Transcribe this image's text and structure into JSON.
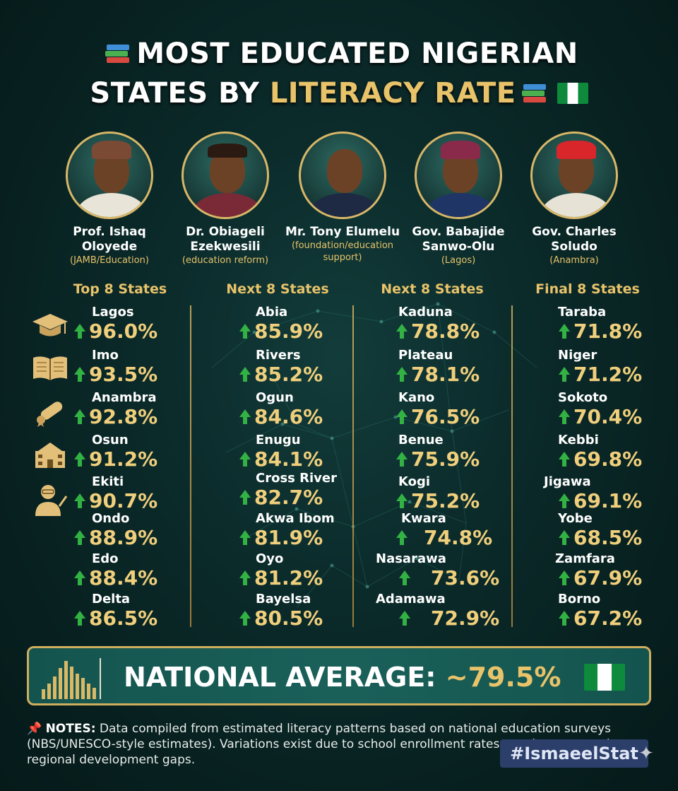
{
  "title": {
    "line1": "MOST EDUCATED NIGERIAN",
    "line2_prefix": "STATES BY",
    "line2_highlight": "LITERACY RATE"
  },
  "people": [
    {
      "name": "Prof. Ishaq Oloyede",
      "role": "(JAMB/Education)"
    },
    {
      "name": "Dr. Obiageli Ezekwesili",
      "role": "(education reform)"
    },
    {
      "name": "Mr. Tony Elumelu",
      "role": "(foundation/education support)"
    },
    {
      "name": "Gov. Babajide Sanwo-Olu",
      "role": "(Lagos)"
    },
    {
      "name": "Gov. Charles Soludo",
      "role": "(Anambra)"
    }
  ],
  "columns": [
    {
      "heading": "Top 8 States",
      "entries": [
        {
          "state": "Lagos",
          "rate": "96.0%"
        },
        {
          "state": "Imo",
          "rate": "93.5%"
        },
        {
          "state": "Anambra",
          "rate": "92.8%"
        },
        {
          "state": "Osun",
          "rate": "91.2%"
        },
        {
          "state": "Ekiti",
          "rate": "90.7%"
        },
        {
          "state": "Ondo",
          "rate": "88.9%"
        },
        {
          "state": "Edo",
          "rate": "88.4%"
        },
        {
          "state": "Delta",
          "rate": "86.5%"
        }
      ]
    },
    {
      "heading": "Next 8 States",
      "entries": [
        {
          "state": "Abia",
          "rate": "85.9%"
        },
        {
          "state": "Rivers",
          "rate": "85.2%"
        },
        {
          "state": "Ogun",
          "rate": "84.6%"
        },
        {
          "state": "Enugu",
          "rate": "84.1%"
        },
        {
          "state": "Cross River",
          "rate": "82.7%"
        },
        {
          "state": "Akwa Ibom",
          "rate": "81.9%"
        },
        {
          "state": "Oyo",
          "rate": "81.2%"
        },
        {
          "state": "Bayelsa",
          "rate": "80.5%"
        }
      ]
    },
    {
      "heading": "Next 8 States",
      "entries": [
        {
          "state": "Kaduna",
          "rate": "78.8%"
        },
        {
          "state": "Plateau",
          "rate": "78.1%"
        },
        {
          "state": "Kano",
          "rate": "76.5%"
        },
        {
          "state": "Benue",
          "rate": "75.9%"
        },
        {
          "state": "Kogi",
          "rate": "75.2%"
        },
        {
          "state": "Kwara",
          "rate": "74.8%"
        },
        {
          "state": "Nasarawa",
          "rate": "73.6%"
        },
        {
          "state": "Adamawa",
          "rate": "72.9%"
        }
      ]
    },
    {
      "heading": "Final 8 States",
      "entries": [
        {
          "state": "Taraba",
          "rate": "71.8%"
        },
        {
          "state": "Niger",
          "rate": "71.2%"
        },
        {
          "state": "Sokoto",
          "rate": "70.4%"
        },
        {
          "state": "Kebbi",
          "rate": "69.8%"
        },
        {
          "state": "Jigawa",
          "rate": "69.1%"
        },
        {
          "state": "Yobe",
          "rate": "68.5%"
        },
        {
          "state": "Zamfara",
          "rate": "67.9%"
        },
        {
          "state": "Borno",
          "rate": "67.2%"
        }
      ]
    }
  ],
  "banner": {
    "label": "NATIONAL AVERAGE:",
    "value": "~79.5%"
  },
  "notes": {
    "label": "NOTES:",
    "text": "Data compiled from estimated literacy patterns based on national education surveys (NBS/UNESCO-style estimates). Variations exist due to school enrollment rates, rural access, and regional development gaps."
  },
  "hashtag": "#IsmaeelStat",
  "colors": {
    "gold": "#e8c36a",
    "arrow_green": "#33b244",
    "background": "#0b2a2a",
    "flag_green": "#0d8a3c"
  }
}
